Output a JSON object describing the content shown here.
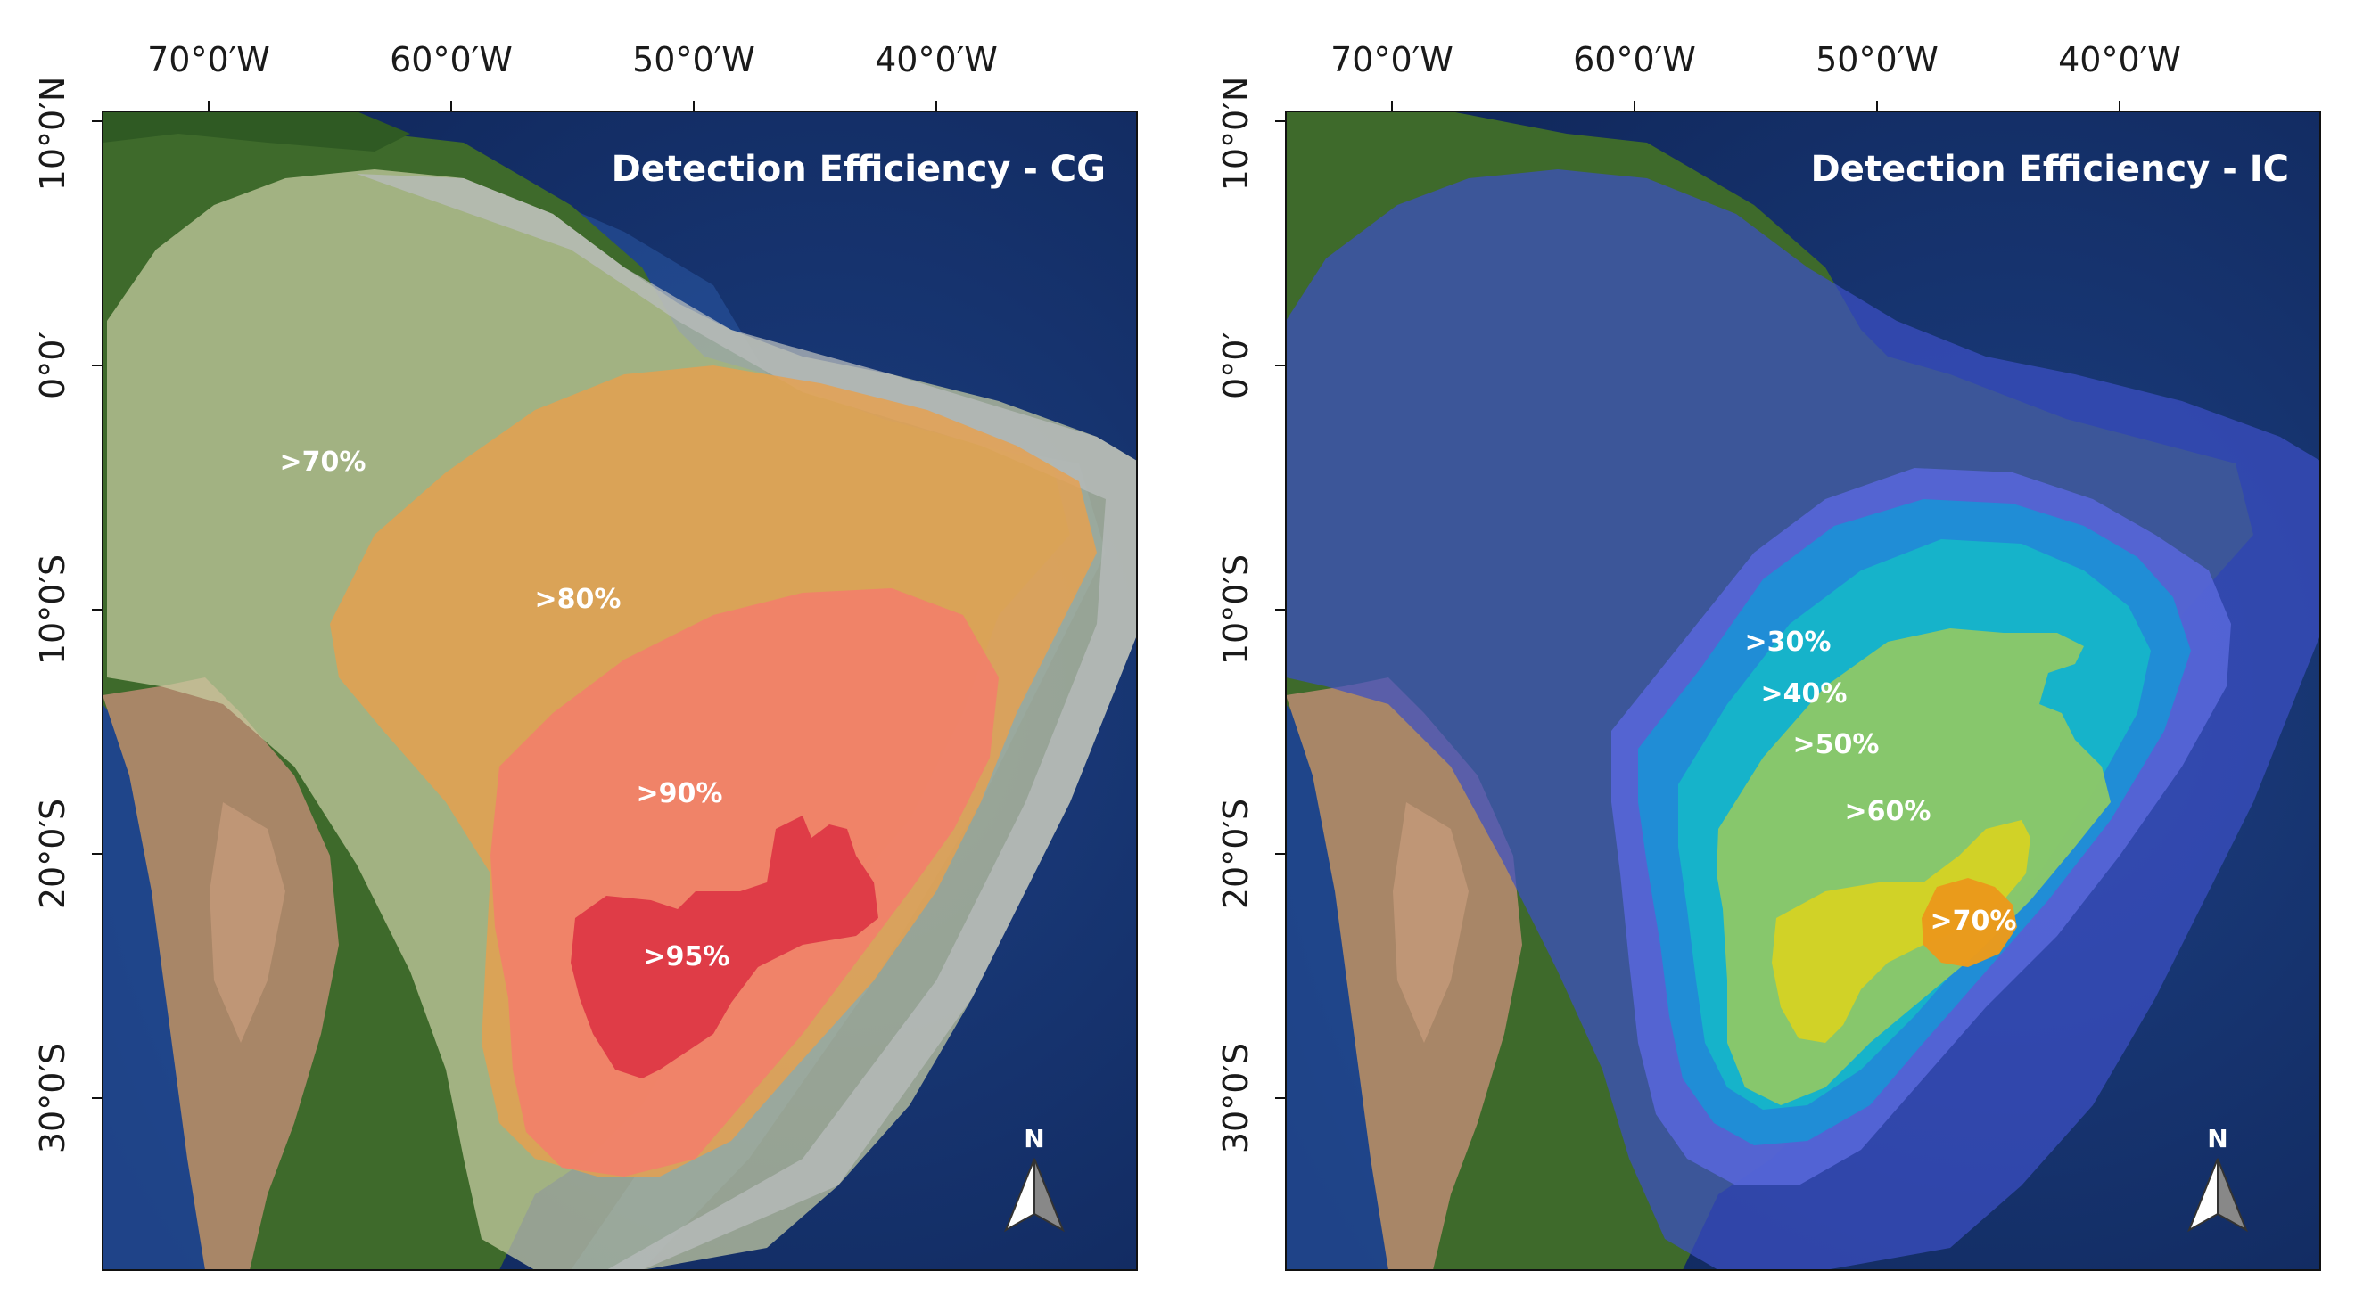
{
  "map_cg": {
    "title": "Detection Efficiency - CG",
    "lon_ticks": [
      "70°0′W",
      "60°0′W",
      "50°0′W",
      "40°0′W"
    ],
    "lat_ticks": [
      "10°0′N",
      "0°0′",
      "10°0′S",
      "20°0′S",
      "30°0′S"
    ],
    "zones": [
      ">70%",
      ">80%",
      ">90%",
      ">95%"
    ],
    "north": "N"
  },
  "map_ic": {
    "title": "Detection Efficiency - IC",
    "lon_ticks": [
      "70°0′W",
      "60°0′W",
      "50°0′W",
      "40°0′W"
    ],
    "lat_ticks": [
      "10°0′N",
      "0°0′",
      "10°0′S",
      "20°0′S",
      "30°0′S"
    ],
    "zones": [
      ">30%",
      ">40%",
      ">50%",
      ">60%",
      ">70%"
    ],
    "north": "N"
  },
  "colors": {
    "ocean": "#15336e",
    "land": "#3d6b2c",
    "andes": "#9a7d62",
    "cg_70": "#c9cfa3",
    "cg_80": "#e7a04e",
    "cg_90": "#f27e6b",
    "cg_95": "#dd3846",
    "ic_outer": "#3b4fc4",
    "ic_30": "#5666d8",
    "ic_40": "#1e8fd6",
    "ic_50": "#16b5c9",
    "ic_60": "#8ac76a",
    "ic_65": "#d2d226",
    "ic_70": "#eb9a1c"
  }
}
